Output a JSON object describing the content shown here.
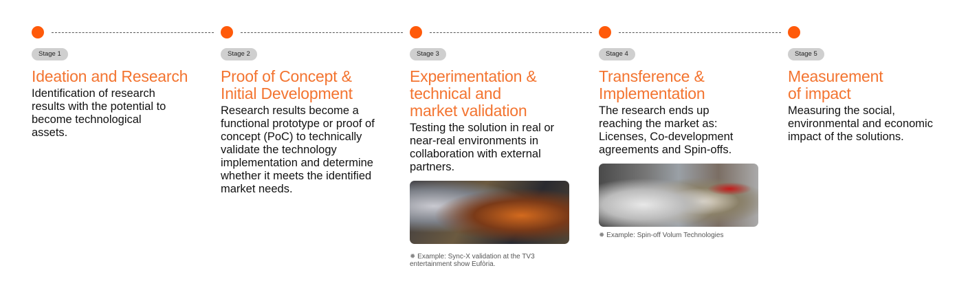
{
  "accent_color": "#ff5a0a",
  "stages": [
    {
      "badge": "Stage 1",
      "title": "Ideation and Research",
      "body": "Identification of research results with the potential to become technological assets."
    },
    {
      "badge": "Stage 2",
      "title": "Proof of Concept & Initial Development",
      "body": "Research results become a functional prototype or proof of concept (PoC) to technically validate the technology implementation and determine whether it meets the identified market needs."
    },
    {
      "badge": "Stage 3",
      "title": "Experimentation & technical and market validation",
      "body": "Testing the solution in real or near-real environments in collaboration with external partners.",
      "caption": "Example: Sync-X validation at the TV3 entertainment show Eufòria.",
      "caption_icon": "gear-icon"
    },
    {
      "badge": "Stage 4",
      "title": "Transference & Implementation",
      "body": "The research ends up reaching the market as: Licenses, Co-development agreements and Spin-offs.",
      "caption": "Example: Spin-off Volum Technologies",
      "caption_icon": "gear-icon"
    },
    {
      "badge": "Stage 5",
      "title": "Measurement of impact",
      "body": "Measuring the social, environmental and economic impact of the solutions."
    }
  ]
}
